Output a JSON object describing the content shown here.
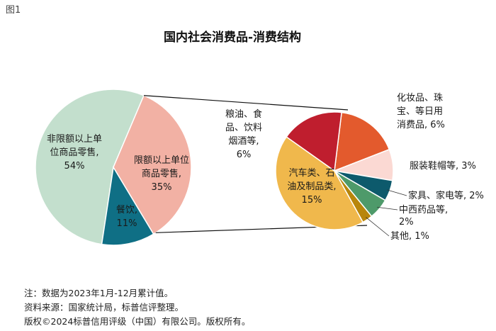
{
  "figure_label": "图1",
  "chart_data": {
    "title": "国内社会消费品-消费结构",
    "main_pie": {
      "type": "pie",
      "slices": [
        {
          "label_lines": [
            "非限额以上单",
            "位商品零售,"
          ],
          "pct_label": "54%",
          "value": 54,
          "color": "#c3dfcd"
        },
        {
          "label_lines": [
            "限额以上单位",
            "商品零售,"
          ],
          "pct_label": "35%",
          "value": 35,
          "color": "#f2b1a4"
        },
        {
          "label_lines": [
            "餐饮,"
          ],
          "pct_label": "11%",
          "value": 11,
          "color": "#0f6f85"
        }
      ]
    },
    "sub_pie": {
      "type": "pie",
      "breakdown_of": "限额以上单位商品零售",
      "slices": [
        {
          "label_lines": [
            "化妆品、珠",
            "宝、等日用",
            "消费品, 6%"
          ],
          "value": 6,
          "color": "#e35a2d"
        },
        {
          "label_lines": [
            "服装鞋帽等, 3%"
          ],
          "value": 3,
          "color": "#fbd9d3"
        },
        {
          "label_lines": [
            "家具、家电等, 2%"
          ],
          "value": 2,
          "color": "#0d5a6c"
        },
        {
          "label_lines": [
            "中西药品等,",
            "2%"
          ],
          "value": 2,
          "color": "#4e9a6a"
        },
        {
          "label_lines": [
            "其他, 1%"
          ],
          "value": 1,
          "color": "#b8860b"
        },
        {
          "label_lines": [
            "汽车类、石",
            "油及制品类,",
            "15%"
          ],
          "value": 15,
          "color": "#f0b84c"
        },
        {
          "label_lines": [
            "粮油、食",
            "品、饮料",
            "烟酒等,",
            "6%"
          ],
          "value": 6,
          "color": "#bf1e2e"
        }
      ]
    }
  },
  "notes": [
    "注：数据为2023年1月-12月累计值。",
    "资料来源：国家统计局，标普信评整理。",
    "版权©2024标普信用评级（中国）有限公司。版权所有。"
  ]
}
